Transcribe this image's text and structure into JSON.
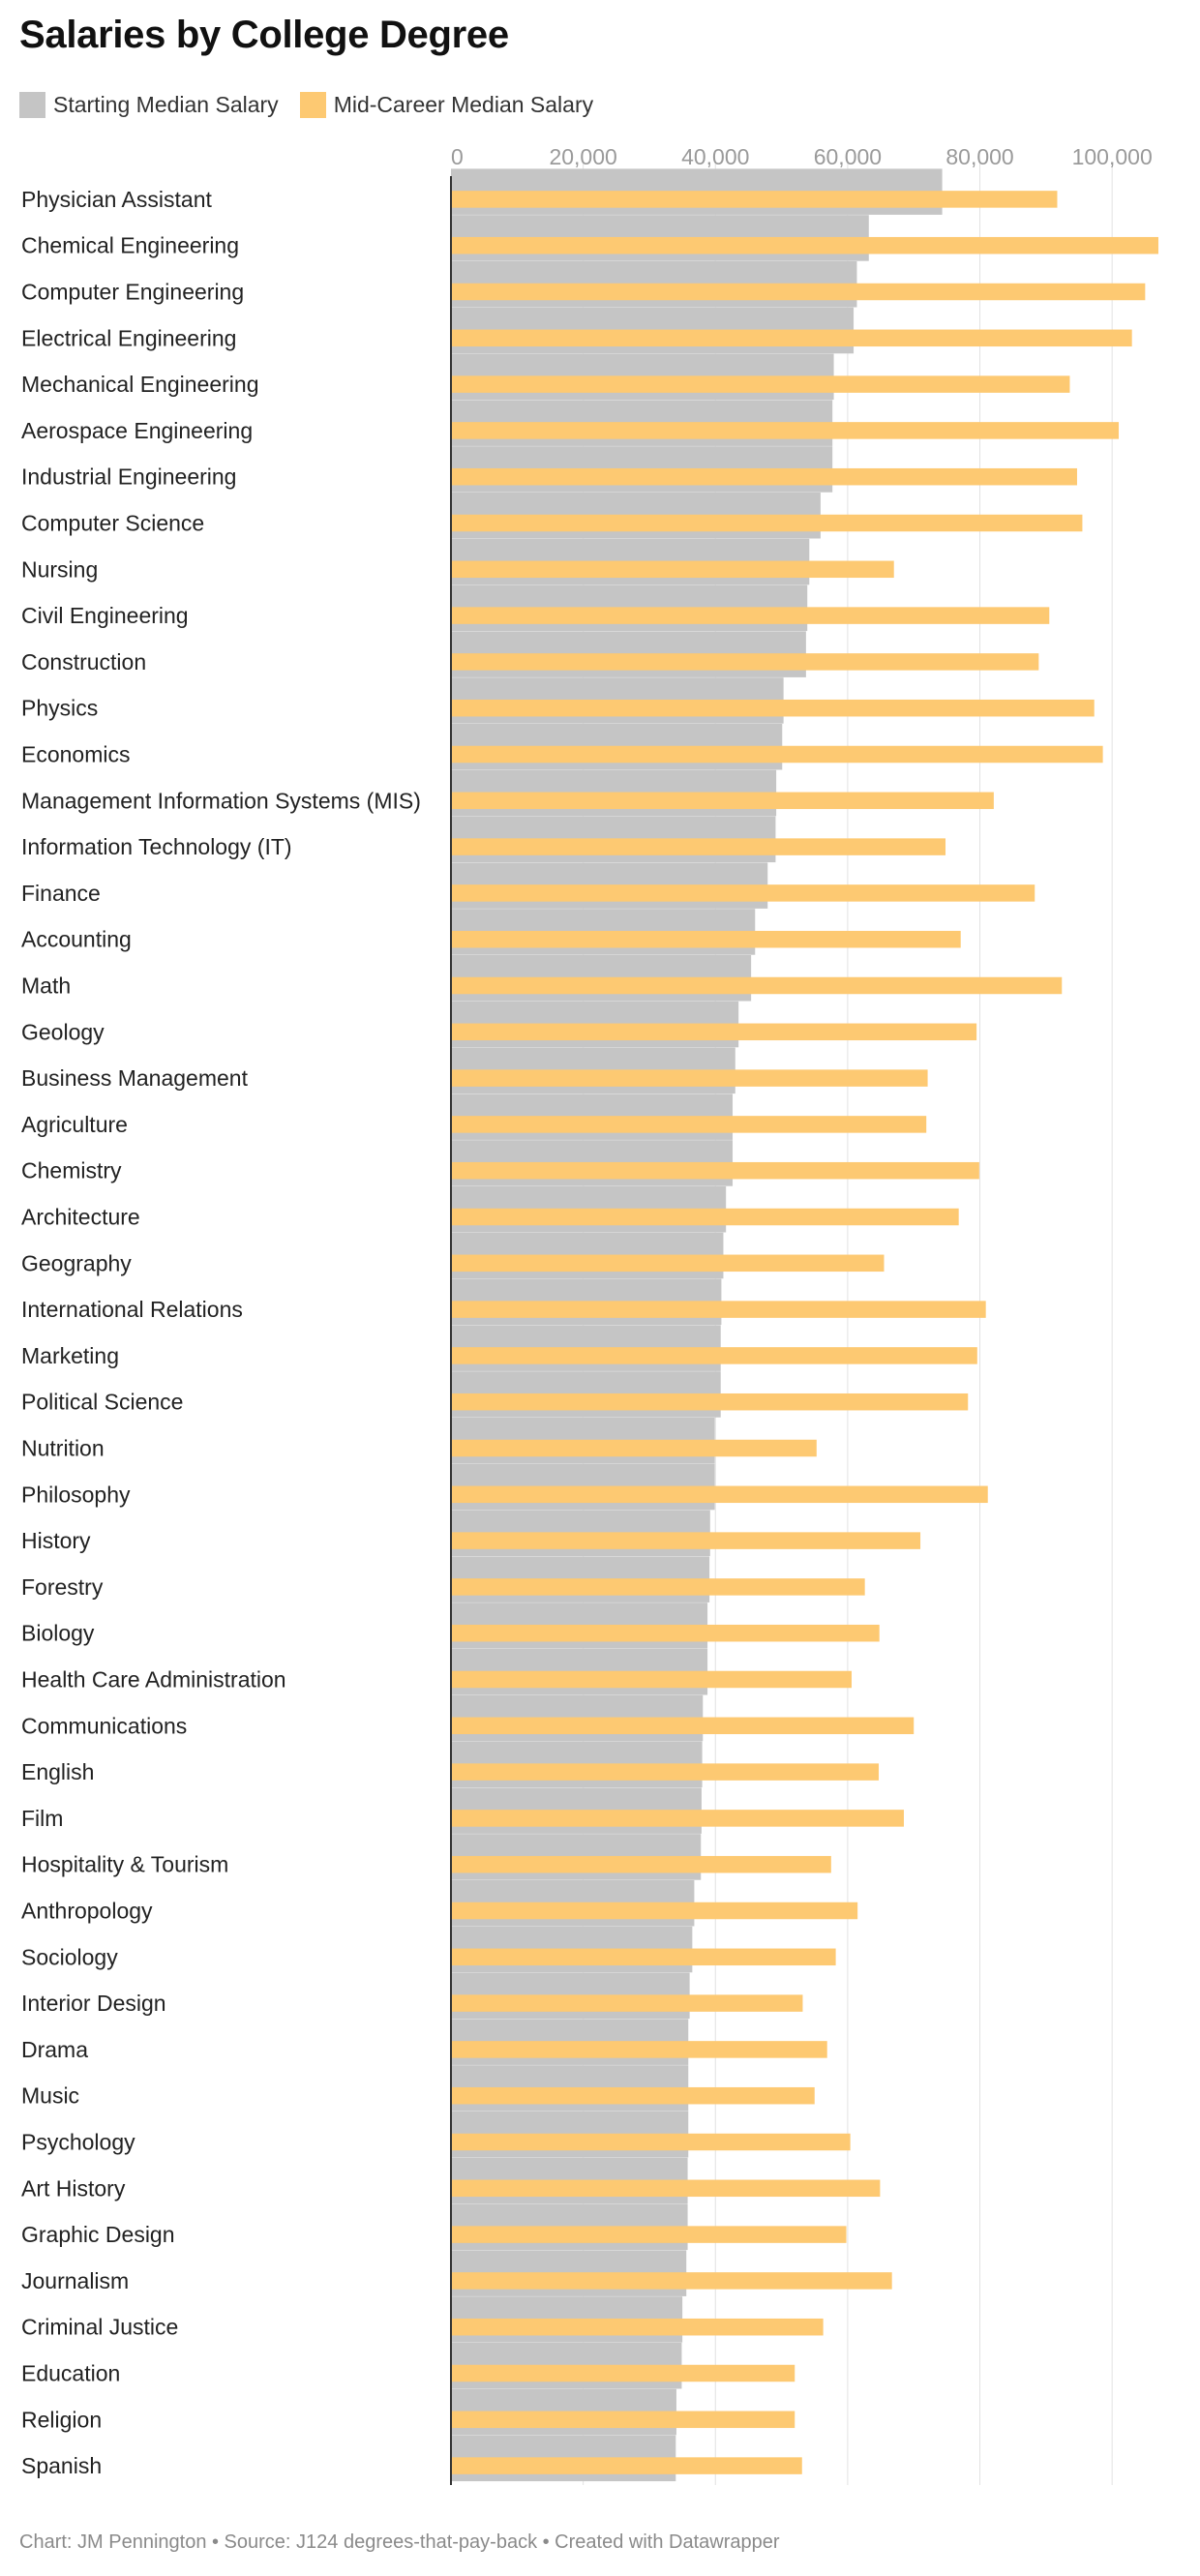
{
  "page": {
    "title": "Salaries by College Degree",
    "footer": "Chart: JM Pennington • Source: J124 degrees-that-pay-back • Created with Datawrapper"
  },
  "chart_data": {
    "type": "bar",
    "orientation": "horizontal",
    "title": "Salaries by College Degree",
    "xlabel": "",
    "ylabel": "",
    "xlim": [
      0,
      107000
    ],
    "x_ticks": [
      0,
      20000,
      40000,
      60000,
      80000,
      100000
    ],
    "x_tick_labels": [
      "0",
      "20,000",
      "40,000",
      "60,000",
      "80,000",
      "100,000"
    ],
    "grid": true,
    "legend_position": "top-left",
    "categories": [
      "Physician Assistant",
      "Chemical Engineering",
      "Computer Engineering",
      "Electrical Engineering",
      "Mechanical Engineering",
      "Aerospace Engineering",
      "Industrial Engineering",
      "Computer Science",
      "Nursing",
      "Civil Engineering",
      "Construction",
      "Physics",
      "Economics",
      "Management Information Systems (MIS)",
      "Information Technology (IT)",
      "Finance",
      "Accounting",
      "Math",
      "Geology",
      "Business Management",
      "Agriculture",
      "Chemistry",
      "Architecture",
      "Geography",
      "International Relations",
      "Marketing",
      "Political Science",
      "Nutrition",
      "Philosophy",
      "History",
      "Forestry",
      "Biology",
      "Health Care Administration",
      "Communications",
      "English",
      "Film",
      "Hospitality & Tourism",
      "Anthropology",
      "Sociology",
      "Interior Design",
      "Drama",
      "Music",
      "Psychology",
      "Art History",
      "Graphic Design",
      "Journalism",
      "Criminal Justice",
      "Education",
      "Religion",
      "Spanish"
    ],
    "series": [
      {
        "name": "Starting Median Salary",
        "color": "#c5c5c5",
        "values": [
          74300,
          63200,
          61400,
          60900,
          57900,
          57700,
          57700,
          55900,
          54200,
          53900,
          53700,
          50300,
          50100,
          49200,
          49100,
          47900,
          46000,
          45400,
          43500,
          43000,
          42600,
          42600,
          41600,
          41200,
          40900,
          40800,
          40800,
          39900,
          39900,
          39200,
          39100,
          38800,
          38800,
          38100,
          38000,
          37900,
          37800,
          36800,
          36500,
          36100,
          35900,
          35900,
          35900,
          35800,
          35800,
          35600,
          35000,
          34900,
          34100,
          34000
        ]
      },
      {
        "name": "Mid-Career Median Salary",
        "color": "#fdc972",
        "values": [
          91700,
          107000,
          105000,
          103000,
          93600,
          101000,
          94700,
          95500,
          67000,
          90500,
          88900,
          97300,
          98600,
          82100,
          74800,
          88300,
          77100,
          92400,
          79500,
          72100,
          71900,
          79900,
          76800,
          65500,
          80900,
          79600,
          78200,
          55300,
          81200,
          71000,
          62600,
          64800,
          60600,
          70000,
          64700,
          68500,
          57500,
          61500,
          58200,
          53200,
          56900,
          55000,
          60400,
          64900,
          59800,
          66700,
          56300,
          52000,
          52000,
          53100
        ]
      }
    ]
  }
}
